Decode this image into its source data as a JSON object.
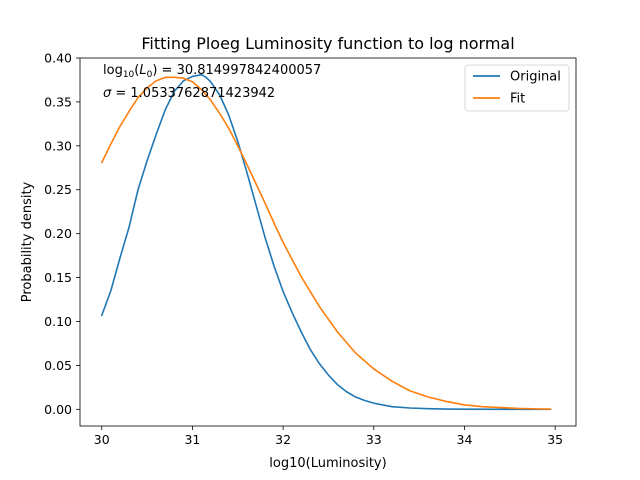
{
  "chart_data": {
    "type": "line",
    "title": "Fitting Ploeg Luminosity function to log normal",
    "xlabel": "log10(Luminosity)",
    "ylabel": "Probability density",
    "xlim": [
      29.76,
      35.23
    ],
    "ylim": [
      -0.019,
      0.4
    ],
    "xticks": [
      30,
      31,
      32,
      33,
      34,
      35
    ],
    "xtick_labels": [
      "30",
      "31",
      "32",
      "33",
      "34",
      "35"
    ],
    "yticks": [
      0.0,
      0.05,
      0.1,
      0.15,
      0.2,
      0.25,
      0.3,
      0.35,
      0.4
    ],
    "ytick_labels": [
      "0.00",
      "0.05",
      "0.10",
      "0.15",
      "0.20",
      "0.25",
      "0.30",
      "0.35",
      "0.40"
    ],
    "grid": false,
    "legend_position": "upper-right",
    "annotations": [
      {
        "prefix": "log",
        "sub": "10",
        "mid": "(",
        "var": "L",
        "varsub": "0",
        "suffix": ") = 30.814997842400057"
      },
      {
        "prefix": "",
        "sub": "",
        "mid": "",
        "var": "σ",
        "varsub": "",
        "suffix": " = 1.0533762871423942"
      }
    ],
    "series": [
      {
        "name": "Original",
        "color": "#1f77b4",
        "x": [
          30.0,
          30.1,
          30.2,
          30.3,
          30.4,
          30.5,
          30.6,
          30.7,
          30.8,
          30.9,
          31.0,
          31.1,
          31.15,
          31.2,
          31.3,
          31.4,
          31.5,
          31.6,
          31.7,
          31.8,
          31.9,
          32.0,
          32.1,
          32.2,
          32.3,
          32.4,
          32.5,
          32.6,
          32.7,
          32.8,
          32.9,
          33.0,
          33.2,
          33.4,
          33.6,
          33.8,
          34.0,
          34.5,
          34.95
        ],
        "y": [
          0.107,
          0.135,
          0.172,
          0.207,
          0.25,
          0.283,
          0.313,
          0.341,
          0.362,
          0.374,
          0.379,
          0.381,
          0.378,
          0.373,
          0.358,
          0.335,
          0.305,
          0.27,
          0.233,
          0.196,
          0.163,
          0.134,
          0.11,
          0.088,
          0.068,
          0.052,
          0.039,
          0.028,
          0.02,
          0.014,
          0.01,
          0.007,
          0.003,
          0.0015,
          0.0007,
          0.0003,
          0.0001,
          0.0,
          0.0
        ]
      },
      {
        "name": "Fit",
        "color": "#ff7f0e",
        "x": [
          30.0,
          30.1,
          30.2,
          30.3,
          30.4,
          30.5,
          30.6,
          30.7,
          30.8,
          30.9,
          31.0,
          31.1,
          31.2,
          31.3,
          31.4,
          31.5,
          31.6,
          31.7,
          31.8,
          31.9,
          32.0,
          32.2,
          32.4,
          32.6,
          32.8,
          33.0,
          33.2,
          33.4,
          33.6,
          33.8,
          34.0,
          34.2,
          34.4,
          34.6,
          34.8,
          34.95
        ],
        "y": [
          0.281,
          0.302,
          0.322,
          0.339,
          0.355,
          0.366,
          0.374,
          0.378,
          0.378,
          0.377,
          0.373,
          0.364,
          0.352,
          0.337,
          0.32,
          0.3,
          0.279,
          0.257,
          0.235,
          0.212,
          0.19,
          0.151,
          0.117,
          0.088,
          0.064,
          0.046,
          0.032,
          0.021,
          0.014,
          0.009,
          0.005,
          0.003,
          0.002,
          0.001,
          0.0005,
          0.0003
        ]
      }
    ]
  }
}
